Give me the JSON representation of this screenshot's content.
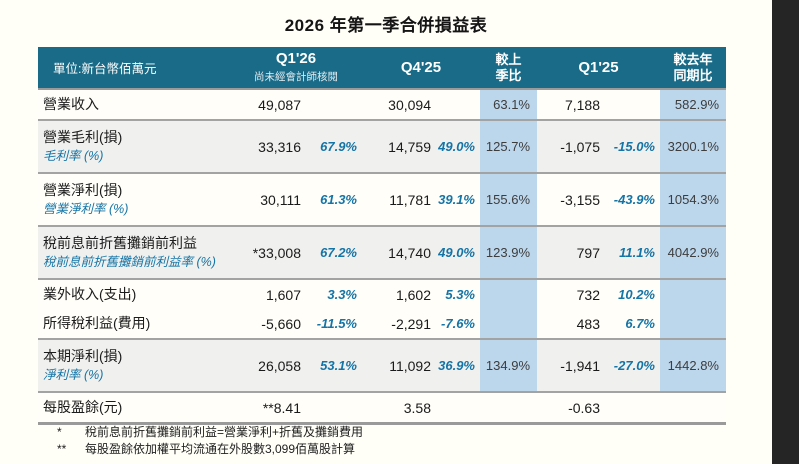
{
  "page": {
    "title": "2026 年第一季合併損益表"
  },
  "colors": {
    "header_bg": "#196b87",
    "highlight_column_bg": "#bcd6ec",
    "shaded_row_bg": "#f0f0ee",
    "accent_text": "#1474a6",
    "separator": "#a3a3a3",
    "side_strip": "#252525"
  },
  "table": {
    "header": {
      "unit_label": "單位:新台幣佰萬元",
      "col_q126": "Q1'26",
      "col_q126_note": "尚未經會計師核閱",
      "col_q425": "Q4'25",
      "col_qoq_line1": "較上",
      "col_qoq_line2": "季比",
      "col_q125": "Q1'25",
      "col_yoy_line1": "較去年",
      "col_yoy_line2": "同期比"
    },
    "rows": [
      {
        "label": "營業收入",
        "sublabel": "",
        "q126": "49,087",
        "q126_pct": "",
        "q425": "30,094",
        "q425_pct": "",
        "qoq": "63.1%",
        "q125": "7,188",
        "q125_pct": "",
        "yoy": "582.9%"
      },
      {
        "label": "營業毛利(損)",
        "sublabel": "毛利率 (%)",
        "q126": "33,316",
        "q126_pct": "67.9%",
        "q425": "14,759",
        "q425_pct": "49.0%",
        "qoq": "125.7%",
        "q125": "-1,075",
        "q125_pct": "-15.0%",
        "yoy": "3200.1%"
      },
      {
        "label": "營業淨利(損)",
        "sublabel": "營業淨利率 (%)",
        "q126": "30,111",
        "q126_pct": "61.3%",
        "q425": "11,781",
        "q425_pct": "39.1%",
        "qoq": "155.6%",
        "q125": "-3,155",
        "q125_pct": "-43.9%",
        "yoy": "1054.3%"
      },
      {
        "label": "稅前息前折舊攤銷前利益",
        "sublabel": "稅前息前折舊攤銷前利益率 (%)",
        "q126": "*33,008",
        "q126_pct": "67.2%",
        "q425": "14,740",
        "q425_pct": "49.0%",
        "qoq": "123.9%",
        "q125": "797",
        "q125_pct": "11.1%",
        "yoy": "4042.9%"
      },
      {
        "label": "業外收入(支出)",
        "sublabel": "",
        "q126": "1,607",
        "q126_pct": "3.3%",
        "q425": "1,602",
        "q425_pct": "5.3%",
        "qoq": "",
        "q125": "732",
        "q125_pct": "10.2%",
        "yoy": ""
      },
      {
        "label": "所得稅利益(費用)",
        "sublabel": "",
        "q126": "-5,660",
        "q126_pct": "-11.5%",
        "q425": "-2,291",
        "q425_pct": "-7.6%",
        "qoq": "",
        "q125": "483",
        "q125_pct": "6.7%",
        "yoy": ""
      },
      {
        "label": "本期淨利(損)",
        "sublabel": "淨利率 (%)",
        "q126": "26,058",
        "q126_pct": "53.1%",
        "q425": "11,092",
        "q425_pct": "36.9%",
        "qoq": "134.9%",
        "q125": "-1,941",
        "q125_pct": "-27.0%",
        "yoy": "1442.8%"
      }
    ],
    "eps_row": {
      "label": "每股盈餘(元)",
      "q126": "**8.41",
      "q425": "3.58",
      "q125": "-0.63"
    },
    "footnotes": [
      {
        "marker": "*",
        "text": "稅前息前折舊攤銷前利益=營業淨利+折舊及攤銷費用"
      },
      {
        "marker": "**",
        "text": "每股盈餘依加權平均流通在外股數3,099佰萬股計算"
      }
    ]
  }
}
